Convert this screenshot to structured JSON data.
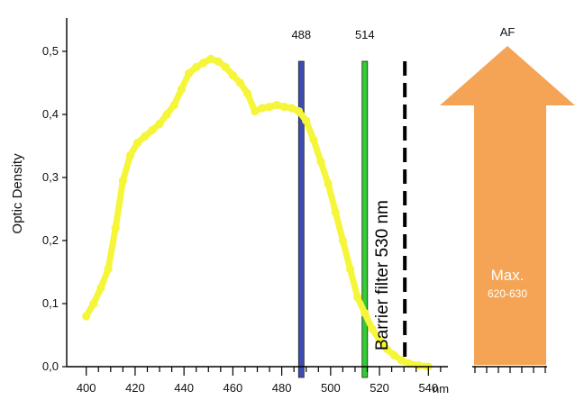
{
  "chart_data": {
    "type": "line",
    "ylabel": "Optic Density",
    "x_unit": "nm",
    "xlim": [
      392,
      548
    ],
    "ylim": [
      0,
      0.5
    ],
    "x_ticks": [
      400,
      420,
      440,
      460,
      480,
      500,
      520,
      540
    ],
    "y_ticks": [
      0.0,
      0.1,
      0.2,
      0.3,
      0.4,
      0.5
    ],
    "y_tick_labels": [
      "0,0",
      "0,1",
      "0,2",
      "0,3",
      "0,4",
      "0,5"
    ],
    "grid": false,
    "series": [
      {
        "color": "#f5f53a",
        "points": [
          [
            400,
            0.08
          ],
          [
            403,
            0.1
          ],
          [
            406,
            0.125
          ],
          [
            409,
            0.155
          ],
          [
            412,
            0.22
          ],
          [
            415,
            0.295
          ],
          [
            418,
            0.335
          ],
          [
            421,
            0.355
          ],
          [
            424,
            0.365
          ],
          [
            427,
            0.375
          ],
          [
            430,
            0.385
          ],
          [
            433,
            0.4
          ],
          [
            436,
            0.415
          ],
          [
            439,
            0.44
          ],
          [
            442,
            0.465
          ],
          [
            445,
            0.475
          ],
          [
            448,
            0.482
          ],
          [
            451,
            0.488
          ],
          [
            454,
            0.484
          ],
          [
            457,
            0.475
          ],
          [
            460,
            0.462
          ],
          [
            463,
            0.45
          ],
          [
            466,
            0.433
          ],
          [
            469,
            0.405
          ],
          [
            472,
            0.41
          ],
          [
            475,
            0.412
          ],
          [
            478,
            0.415
          ],
          [
            481,
            0.412
          ],
          [
            484,
            0.41
          ],
          [
            487,
            0.405
          ],
          [
            490,
            0.39
          ],
          [
            493,
            0.36
          ],
          [
            496,
            0.325
          ],
          [
            499,
            0.29
          ],
          [
            502,
            0.245
          ],
          [
            505,
            0.2
          ],
          [
            508,
            0.155
          ],
          [
            511,
            0.11
          ],
          [
            514,
            0.085
          ],
          [
            517,
            0.06
          ],
          [
            520,
            0.042
          ],
          [
            523,
            0.028
          ],
          [
            526,
            0.018
          ],
          [
            529,
            0.01
          ],
          [
            532,
            0.005
          ],
          [
            536,
            0.002
          ],
          [
            540,
            0.0
          ]
        ]
      }
    ],
    "laser_lines": [
      {
        "label": "488",
        "x": 488,
        "color": "#3d4db3"
      },
      {
        "label": "514",
        "x": 514,
        "color": "#33cc33"
      }
    ],
    "barrier_filter": {
      "x": 530,
      "label": "Barrier filter 530 nm",
      "color": "#000000"
    },
    "emission": {
      "label": "AF",
      "max_label": "Max.",
      "range_label": "620-630",
      "color": "#f5a455"
    }
  }
}
